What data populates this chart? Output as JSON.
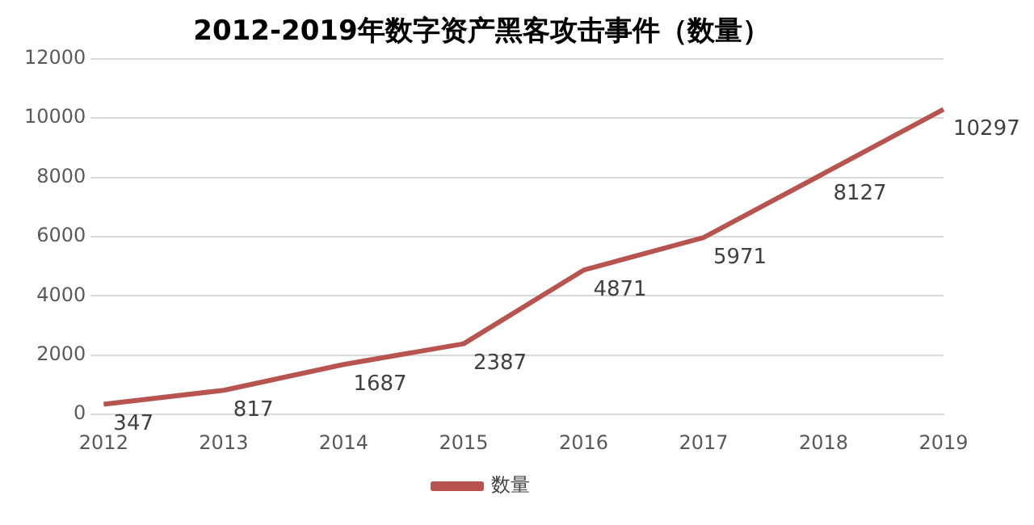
{
  "chart_data": {
    "type": "line",
    "title": "2012-2019年数字资产黑客攻击事件（数量）",
    "categories": [
      "2012",
      "2013",
      "2014",
      "2015",
      "2016",
      "2017",
      "2018",
      "2019"
    ],
    "series": [
      {
        "name": "数量",
        "color": "#b85450",
        "values": [
          347,
          817,
          1687,
          2387,
          4871,
          5971,
          8127,
          10297
        ]
      }
    ],
    "ylim": [
      0,
      12000
    ],
    "yticks": [
      0,
      2000,
      4000,
      6000,
      8000,
      10000,
      12000
    ],
    "grid": "y",
    "legend": "bottom",
    "data_labels": true,
    "marker": "none",
    "line_style": "solid"
  }
}
